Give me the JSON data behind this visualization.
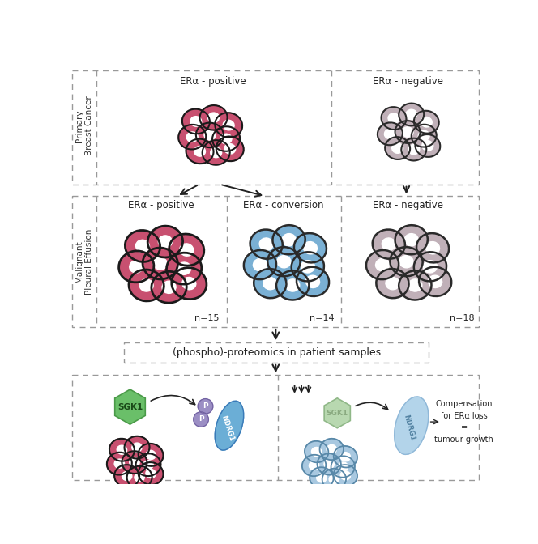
{
  "bg_color": "#ffffff",
  "dashed_color": "#999999",
  "text_color": "#222222",
  "cell_red_fill": "#c85070",
  "cell_red_inner": "#e8909a",
  "cell_red_outline": "#1a1a1a",
  "cell_gray_fill": "#c0b0b8",
  "cell_gray_inner": "#ddd0d4",
  "cell_gray_outline": "#2a2a2a",
  "cell_blue_fill": "#7ab0d4",
  "cell_blue_inner": "#c8dff0",
  "cell_blue_outline": "#2a2a2a",
  "sgk1_green": "#6abf69",
  "sgk1_green_light": "#b8d8b0",
  "ndrg1_blue": "#6baed6",
  "ndrg1_blue_light": "#b3d4ea",
  "phospho_purple": "#9b8ec4",
  "section_label_color": "#333333",
  "title_row1_left": "ERα - positive",
  "title_row1_right": "ERα - negative",
  "title_row2_left": "ERα - positive",
  "title_row2_mid": "ERα - conversion",
  "title_row2_right": "ERα - negative",
  "n_row2_left": "n=15",
  "n_row2_mid": "n=14",
  "n_row2_right": "n=18",
  "proteomics_label": "(phospho)-proteomics in patient samples",
  "section1_label": "Primary\nBreast Cancer",
  "section2_label": "Malignant\nPleural Effusion",
  "comp_text": "Compensation\nfor ERα loss\n=\ntumour growth",
  "sgk1_label": "SGK1",
  "ndrg1_label": "NDRG1",
  "p_label": "P"
}
